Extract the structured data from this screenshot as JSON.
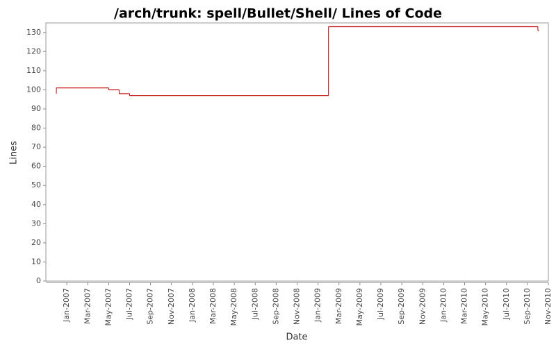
{
  "chart_data": {
    "type": "step",
    "title": "/arch/trunk: spell/Bullet/Shell/ Lines of Code",
    "x_label": "Date",
    "y_label": "Lines",
    "series": [
      {
        "name": "Lines",
        "color": "#c00000",
        "x": [
          "2006-12",
          "2006-12",
          "2007-05",
          "2007-06",
          "2007-07",
          "2009-02",
          "2010-10"
        ],
        "values": [
          98,
          101,
          100,
          98,
          97,
          133,
          131
        ]
      }
    ],
    "xlim": [
      "2006-11",
      "2010-11"
    ],
    "xticks": [
      {
        "value": "2007-01",
        "label": "Jan-2007"
      },
      {
        "value": "2007-03",
        "label": "Mar-2007"
      },
      {
        "value": "2007-05",
        "label": "May-2007"
      },
      {
        "value": "2007-07",
        "label": "Jul-2007"
      },
      {
        "value": "2007-09",
        "label": "Sep-2007"
      },
      {
        "value": "2007-11",
        "label": "Nov-2007"
      },
      {
        "value": "2008-01",
        "label": "Jan-2008"
      },
      {
        "value": "2008-03",
        "label": "Mar-2008"
      },
      {
        "value": "2008-05",
        "label": "May-2008"
      },
      {
        "value": "2008-07",
        "label": "Jul-2008"
      },
      {
        "value": "2008-09",
        "label": "Sep-2008"
      },
      {
        "value": "2008-11",
        "label": "Nov-2008"
      },
      {
        "value": "2009-01",
        "label": "Jan-2009"
      },
      {
        "value": "2009-03",
        "label": "Mar-2009"
      },
      {
        "value": "2009-05",
        "label": "May-2009"
      },
      {
        "value": "2009-07",
        "label": "Jul-2009"
      },
      {
        "value": "2009-09",
        "label": "Sep-2009"
      },
      {
        "value": "2009-11",
        "label": "Nov-2009"
      },
      {
        "value": "2010-01",
        "label": "Jan-2010"
      },
      {
        "value": "2010-03",
        "label": "Mar-2010"
      },
      {
        "value": "2010-05",
        "label": "May-2010"
      },
      {
        "value": "2010-07",
        "label": "Jul-2010"
      },
      {
        "value": "2010-09",
        "label": "Sep-2010"
      },
      {
        "value": "2010-11",
        "label": "Nov-2010"
      }
    ],
    "ylim": [
      0,
      135
    ],
    "yticks": [
      0,
      10,
      20,
      30,
      40,
      50,
      60,
      70,
      80,
      90,
      100,
      110,
      120,
      130
    ]
  }
}
